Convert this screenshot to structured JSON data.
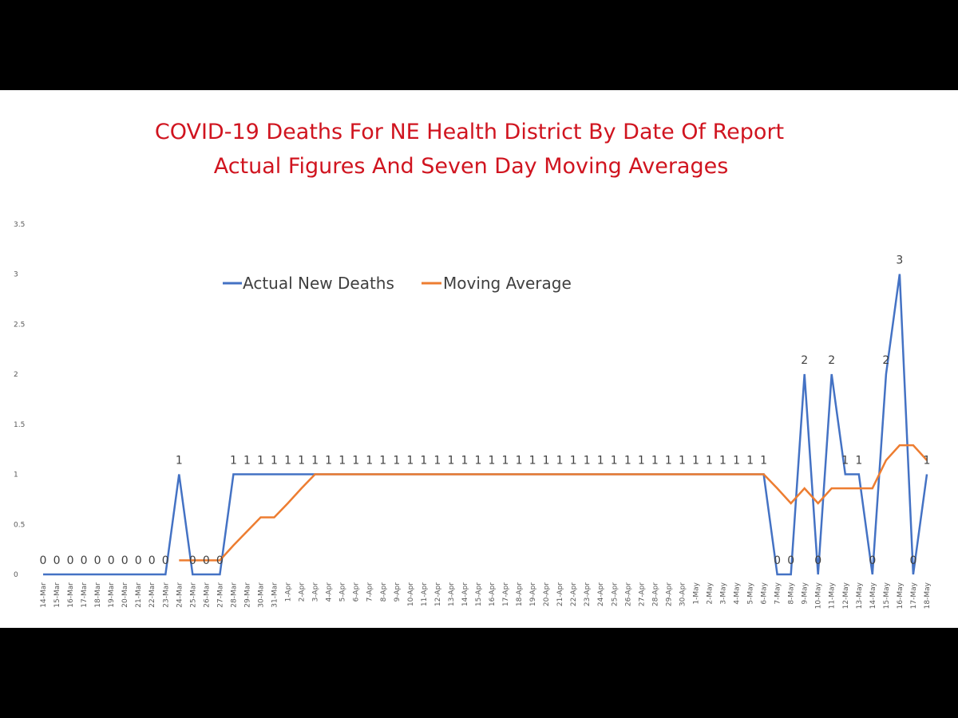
{
  "chart_data": {
    "type": "line",
    "title": [
      "COVID-19 Deaths For NE Health District By Date Of Report",
      "Actual Figures And Seven Day Moving Averages"
    ],
    "xlabel": "",
    "ylabel": "",
    "ylim": [
      0,
      3.5
    ],
    "yticks": [
      "0",
      "0.5",
      "1",
      "1.5",
      "2",
      "2.5",
      "3",
      "3.5"
    ],
    "grid": false,
    "legend_position": "top",
    "categories": [
      "14-Mar",
      "15-Mar",
      "16-Mar",
      "17-Mar",
      "18-Mar",
      "19-Mar",
      "20-Mar",
      "21-Mar",
      "22-Mar",
      "23-Mar",
      "24-Mar",
      "25-Mar",
      "26-Mar",
      "27-Mar",
      "28-Mar",
      "29-Mar",
      "30-Mar",
      "31-Mar",
      "1-Apr",
      "2-Apr",
      "3-Apr",
      "4-Apr",
      "5-Apr",
      "6-Apr",
      "7-Apr",
      "8-Apr",
      "9-Apr",
      "10-Apr",
      "11-Apr",
      "12-Apr",
      "13-Apr",
      "14-Apr",
      "15-Apr",
      "16-Apr",
      "17-Apr",
      "18-Apr",
      "19-Apr",
      "20-Apr",
      "21-Apr",
      "22-Apr",
      "23-Apr",
      "24-Apr",
      "25-Apr",
      "26-Apr",
      "27-Apr",
      "28-Apr",
      "29-Apr",
      "30-Apr",
      "1-May",
      "2-May",
      "3-May",
      "4-May",
      "5-May",
      "6-May",
      "7-May",
      "8-May",
      "9-May",
      "10-May",
      "11-May",
      "12-May",
      "13-May",
      "14-May",
      "15-May",
      "16-May",
      "17-May",
      "18-May"
    ],
    "series": [
      {
        "name": "Actual New Deaths",
        "color": "#4472c4",
        "values": [
          0,
          0,
          0,
          0,
          0,
          0,
          0,
          0,
          0,
          0,
          1,
          0,
          0,
          0,
          1,
          1,
          1,
          1,
          1,
          1,
          1,
          1,
          1,
          1,
          1,
          1,
          1,
          1,
          1,
          1,
          1,
          1,
          1,
          1,
          1,
          1,
          1,
          1,
          1,
          1,
          1,
          1,
          1,
          1,
          1,
          1,
          1,
          1,
          1,
          1,
          1,
          1,
          1,
          1,
          0,
          0,
          2,
          0,
          2,
          1,
          1,
          0,
          2,
          3,
          0,
          1
        ],
        "data_labels": [
          "0",
          "0",
          "0",
          "0",
          "0",
          "0",
          "0",
          "0",
          "0",
          "0",
          "1",
          "0",
          "0",
          "0",
          "1",
          "1",
          "1",
          "1",
          "1",
          "1",
          "1",
          "1",
          "1",
          "1",
          "1",
          "1",
          "1",
          "1",
          "1",
          "1",
          "1",
          "1",
          "1",
          "1",
          "1",
          "1",
          "1",
          "1",
          "1",
          "1",
          "1",
          "1",
          "1",
          "1",
          "1",
          "1",
          "1",
          "1",
          "1",
          "1",
          "1",
          "1",
          "1",
          "1",
          "0",
          "0",
          "2",
          "0",
          "2",
          "1",
          "1",
          "0",
          "2",
          "3",
          "0",
          "1"
        ]
      },
      {
        "name": "Moving Average",
        "color": "#ed7d31",
        "values": [
          null,
          null,
          null,
          null,
          null,
          null,
          null,
          null,
          null,
          null,
          0.14,
          0.14,
          0.14,
          0.14,
          0.29,
          0.43,
          0.57,
          0.57,
          0.71,
          0.86,
          1,
          1,
          1,
          1,
          1,
          1,
          1,
          1,
          1,
          1,
          1,
          1,
          1,
          1,
          1,
          1,
          1,
          1,
          1,
          1,
          1,
          1,
          1,
          1,
          1,
          1,
          1,
          1,
          1,
          1,
          1,
          1,
          1,
          1,
          0.86,
          0.71,
          0.86,
          0.71,
          0.86,
          0.86,
          0.86,
          0.86,
          1.14,
          1.29,
          1.29,
          1.14
        ]
      }
    ]
  }
}
